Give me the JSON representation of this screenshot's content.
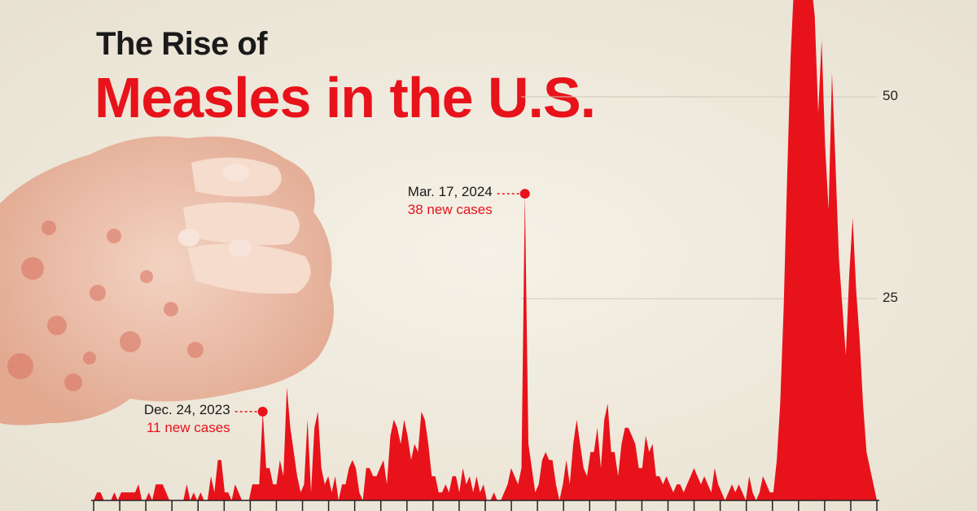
{
  "title": {
    "line1": "The Rise of",
    "line2": "Measles in the U.S."
  },
  "colors": {
    "accent": "#e8121a",
    "background": "#f2ede0",
    "text": "#1a1a1a"
  },
  "chart_data": {
    "type": "area",
    "title": "The Rise of Measles in the U.S.",
    "xlabel": "",
    "ylabel": "",
    "ylim": [
      0,
      62
    ],
    "y_ticks": [
      25,
      50
    ],
    "grid": true,
    "series": [
      {
        "name": "",
        "values": [
          0,
          1,
          1,
          0,
          0,
          0,
          1,
          0,
          1,
          1,
          1,
          1,
          1,
          2,
          0,
          0,
          1,
          0,
          2,
          2,
          2,
          1,
          0,
          0,
          0,
          0,
          0,
          2,
          0,
          1,
          0,
          1,
          0,
          0,
          3,
          1,
          5,
          5,
          1,
          1,
          0,
          2,
          1,
          0,
          0,
          0,
          2,
          2,
          2,
          11,
          4,
          4,
          2,
          2,
          5,
          3,
          14,
          9,
          6,
          3,
          1,
          2,
          10,
          1,
          9,
          11,
          4,
          2,
          3,
          1,
          3,
          0,
          2,
          2,
          4,
          5,
          4,
          1,
          0,
          4,
          4,
          3,
          3,
          4,
          5,
          2,
          8,
          10,
          9,
          7,
          10,
          8,
          5,
          7,
          6,
          11,
          10,
          7,
          3,
          3,
          1,
          1,
          2,
          1,
          3,
          3,
          1,
          4,
          2,
          3,
          1,
          3,
          1,
          2,
          0,
          0,
          1,
          0,
          0,
          1,
          2,
          4,
          3,
          2,
          4,
          38,
          7,
          4,
          1,
          2,
          5,
          6,
          5,
          5,
          2,
          0,
          2,
          5,
          2,
          7,
          10,
          7,
          4,
          3,
          6,
          6,
          9,
          4,
          10,
          12,
          6,
          6,
          3,
          7,
          9,
          9,
          8,
          7,
          4,
          4,
          8,
          6,
          7,
          3,
          3,
          2,
          3,
          2,
          1,
          2,
          2,
          1,
          2,
          3,
          4,
          3,
          2,
          3,
          2,
          1,
          4,
          2,
          1,
          0,
          1,
          2,
          1,
          2,
          1,
          0,
          3,
          1,
          0,
          1,
          3,
          2,
          1,
          1,
          5,
          12,
          24,
          40,
          55,
          64,
          64,
          64,
          64,
          64,
          64,
          60,
          48,
          57,
          44,
          36,
          53,
          42,
          30,
          24,
          18,
          28,
          35,
          26,
          20,
          12,
          6,
          4,
          2,
          0
        ]
      }
    ],
    "annotations": [
      {
        "date": "Dec. 24, 2023",
        "text": "11 new cases",
        "value": 11
      },
      {
        "date": "Mar. 17, 2024",
        "text": "38 new cases",
        "value": 38
      }
    ]
  }
}
